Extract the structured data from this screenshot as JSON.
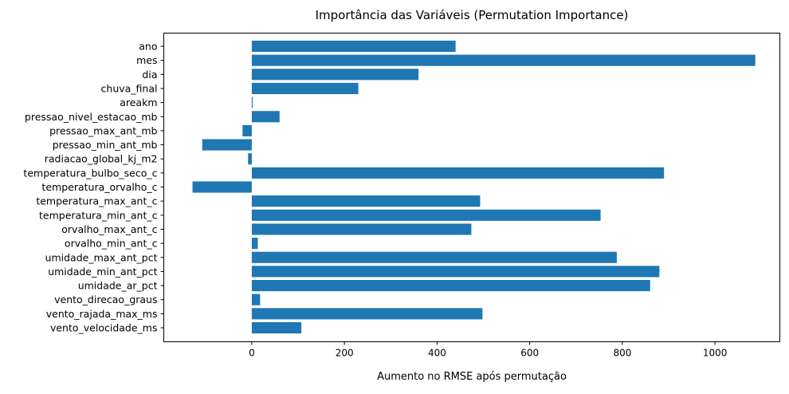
{
  "chart_data": {
    "type": "bar",
    "orientation": "horizontal",
    "title": "Importância das Variáveis (Permutation Importance)",
    "xlabel": "Aumento no RMSE após permutação",
    "ylabel": "",
    "xlim": [
      -190,
      1140
    ],
    "xticks": [
      0,
      200,
      400,
      600,
      800,
      1000
    ],
    "grid": false,
    "bar_color": "#1f77b4",
    "categories": [
      "ano",
      "mes",
      "dia",
      "chuva_final",
      "areakm",
      "pressao_nivel_estacao_mb",
      "pressao_max_ant_mb",
      "pressao_min_ant_mb",
      "radiacao_global_kj_m2",
      "temperatura_bulbo_seco_c",
      "temperatura_orvalho_c",
      "temperatura_max_ant_c",
      "temperatura_min_ant_c",
      "orvalho_max_ant_c",
      "orvalho_min_ant_c",
      "umidade_max_ant_pct",
      "umidade_min_ant_pct",
      "umidade_ar_pct",
      "vento_direcao_graus",
      "vento_rajada_max_ms",
      "vento_velocidade_ms"
    ],
    "values": [
      440,
      1087,
      360,
      230,
      2,
      60,
      -20,
      -107,
      -8,
      890,
      -128,
      493,
      753,
      474,
      13,
      788,
      880,
      860,
      18,
      498,
      107
    ]
  }
}
